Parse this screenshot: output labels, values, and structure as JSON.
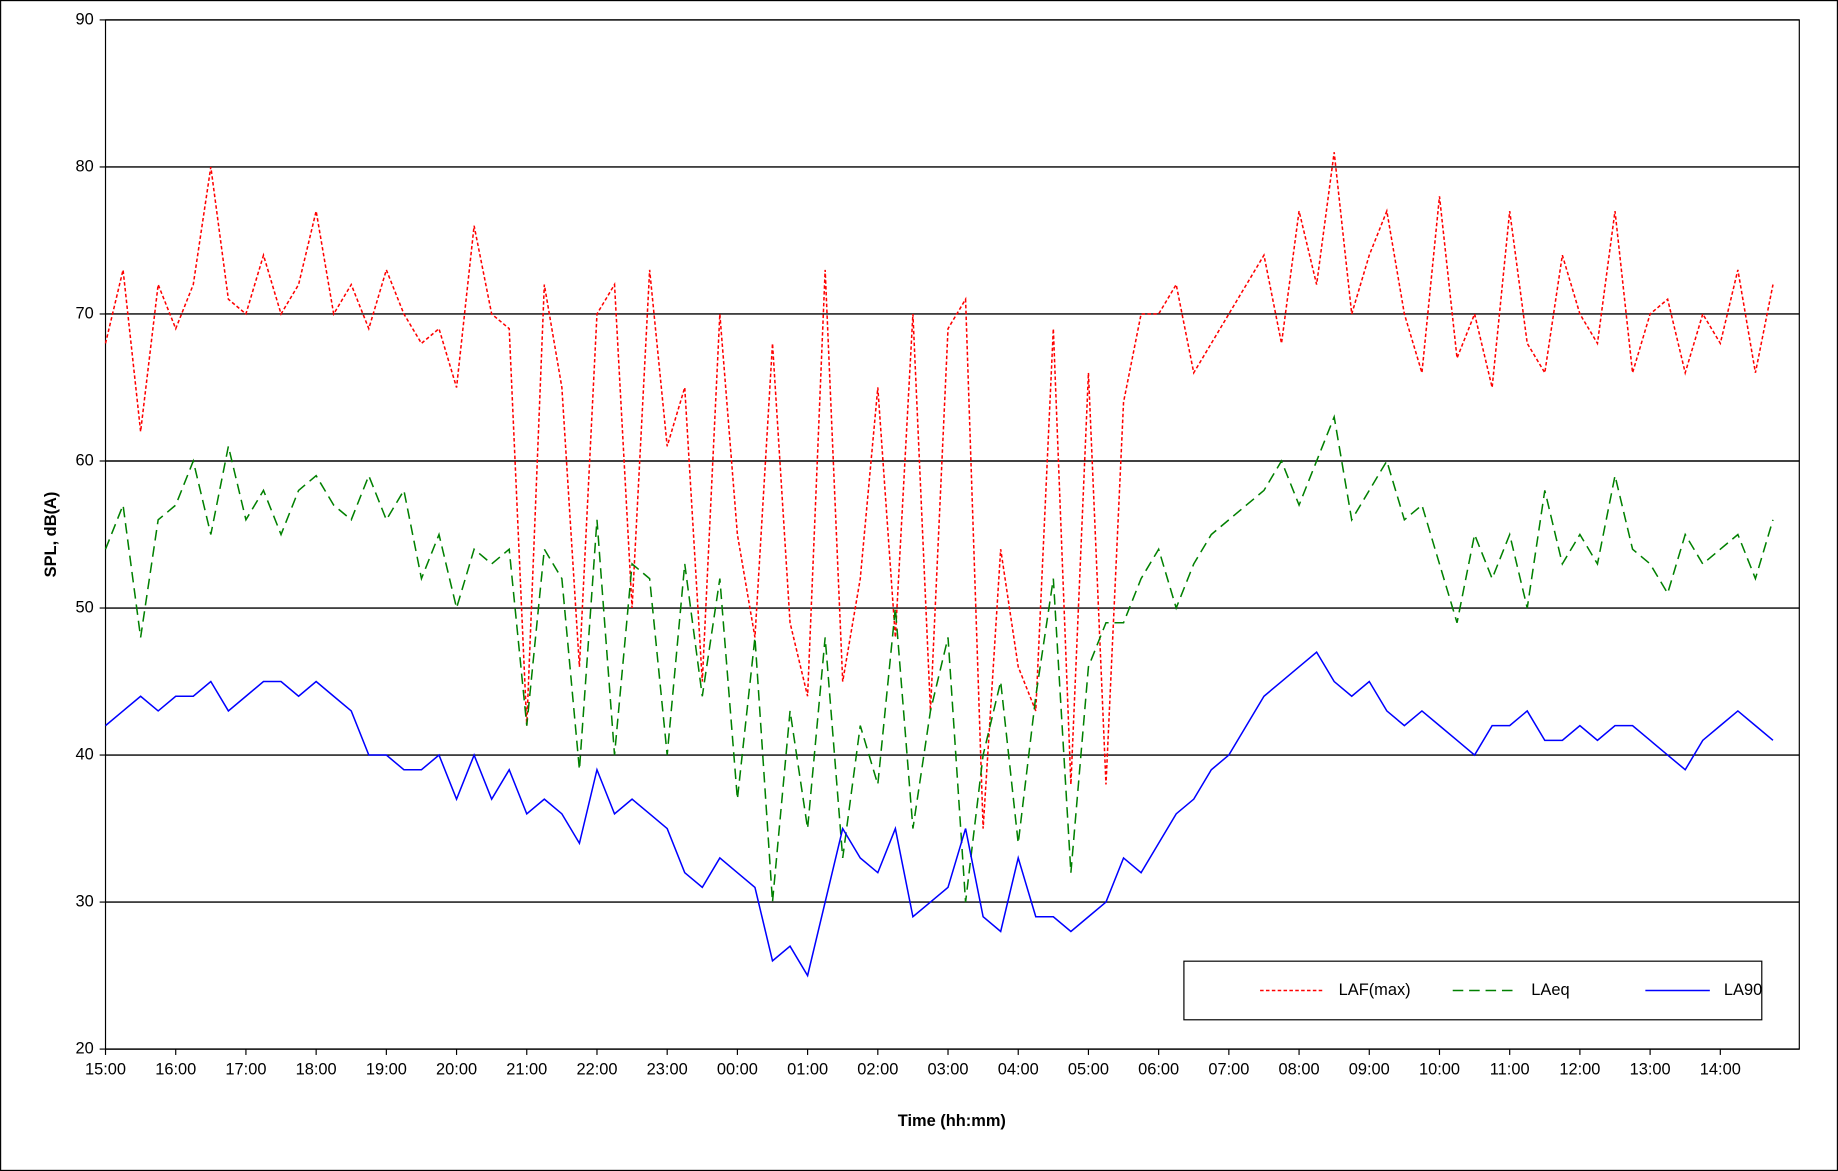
{
  "chart_data": {
    "type": "line",
    "x_label": "Time (hh:mm)",
    "y_label": "SPL, dB(A)",
    "categories": [
      "15:00",
      null,
      null,
      null,
      "16:00",
      null,
      null,
      null,
      "17:00",
      null,
      null,
      null,
      "18:00",
      null,
      null,
      null,
      "19:00",
      null,
      null,
      null,
      "20:00",
      null,
      null,
      null,
      "21:00",
      null,
      null,
      null,
      "22:00",
      null,
      null,
      null,
      "23:00",
      null,
      null,
      null,
      "00:00",
      null,
      null,
      null,
      "01:00",
      null,
      null,
      null,
      "02:00",
      null,
      null,
      null,
      "03:00",
      null,
      null,
      null,
      "04:00",
      null,
      null,
      null,
      "05:00",
      null,
      null,
      null,
      "06:00",
      null,
      null,
      null,
      "07:00",
      null,
      null,
      null,
      "08:00",
      null,
      null,
      null,
      "09:00",
      null,
      null,
      null,
      "10:00",
      null,
      null,
      null,
      "11:00",
      null,
      null,
      null,
      "12:00",
      null,
      null,
      null,
      "13:00",
      null,
      null,
      null,
      "14:00",
      null,
      null,
      null
    ],
    "series": [
      {
        "name": "LAF(max)",
        "color": "#ff0000",
        "dash": "3,2",
        "values": [
          68,
          73,
          62,
          72,
          69,
          72,
          80,
          71,
          70,
          74,
          70,
          72,
          77,
          70,
          72,
          69,
          73,
          70,
          68,
          69,
          65,
          76,
          70,
          69,
          42,
          72,
          65,
          46,
          70,
          72,
          50,
          73,
          61,
          65,
          45,
          70,
          55,
          48,
          68,
          49,
          44,
          73,
          45,
          52,
          65,
          48,
          70,
          43,
          69,
          71,
          35,
          54,
          46,
          43,
          69,
          38,
          66,
          38,
          64,
          70,
          70,
          72,
          66,
          68,
          70,
          72,
          74,
          68,
          77,
          72,
          81,
          70,
          74,
          77,
          70,
          66,
          78,
          67,
          70,
          65,
          77,
          68,
          66,
          74,
          70,
          68,
          77,
          66,
          70,
          71,
          66,
          70,
          68,
          73,
          66,
          72
        ]
      },
      {
        "name": "LAeq",
        "color": "#008000",
        "dash": "9,5",
        "values": [
          54,
          57,
          48,
          56,
          57,
          60,
          55,
          61,
          56,
          58,
          55,
          58,
          59,
          57,
          56,
          59,
          56,
          58,
          52,
          55,
          50,
          54,
          53,
          54,
          42,
          54,
          52,
          39,
          56,
          40,
          53,
          52,
          40,
          53,
          44,
          52,
          37,
          48,
          30,
          43,
          35,
          48,
          33,
          42,
          38,
          50,
          35,
          43,
          48,
          30,
          40,
          45,
          34,
          44,
          52,
          32,
          46,
          49,
          49,
          52,
          54,
          50,
          53,
          55,
          56,
          57,
          58,
          60,
          57,
          60,
          63,
          56,
          58,
          60,
          56,
          57,
          53,
          49,
          55,
          52,
          55,
          50,
          58,
          53,
          55,
          53,
          59,
          54,
          53,
          51,
          55,
          53,
          54,
          55,
          52,
          56
        ]
      },
      {
        "name": "LA90",
        "color": "#0000ff",
        "dash": "none",
        "values": [
          42,
          43,
          44,
          43,
          44,
          44,
          45,
          43,
          44,
          45,
          45,
          44,
          45,
          44,
          43,
          40,
          40,
          39,
          39,
          40,
          37,
          40,
          37,
          39,
          36,
          37,
          36,
          34,
          39,
          36,
          37,
          36,
          35,
          32,
          31,
          33,
          32,
          31,
          26,
          27,
          25,
          30,
          35,
          33,
          32,
          35,
          29,
          30,
          31,
          35,
          29,
          28,
          33,
          29,
          29,
          28,
          29,
          30,
          33,
          32,
          34,
          36,
          37,
          39,
          40,
          42,
          44,
          45,
          46,
          47,
          45,
          44,
          45,
          43,
          42,
          43,
          42,
          41,
          40,
          42,
          42,
          43,
          41,
          41,
          42,
          41,
          42,
          42,
          41,
          40,
          39,
          41,
          42,
          43,
          42,
          41
        ]
      }
    ],
    "ylim": [
      20,
      90
    ],
    "yticks": [
      20,
      30,
      40,
      50,
      60,
      70,
      80,
      90
    ],
    "grid": true,
    "legend": "lower right"
  }
}
